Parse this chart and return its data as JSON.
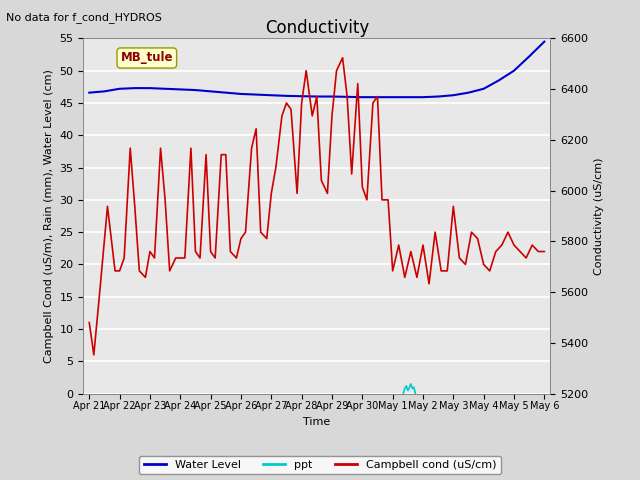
{
  "title": "Conductivity",
  "top_left_text": "No data for f_cond_HYDROS",
  "annotation_box": "MB_tule",
  "xlabel": "Time",
  "ylabel_left": "Campbell Cond (uS/m), Rain (mm), Water Level (cm)",
  "ylabel_right": "Conductivity (uS/cm)",
  "ylim_left": [
    0,
    55
  ],
  "ylim_right": [
    5200,
    6600
  ],
  "fig_bg_color": "#d8d8d8",
  "plot_bg_color": "#e8e8e8",
  "x_tick_labels": [
    "Apr 21",
    "Apr 22",
    "Apr 23",
    "Apr 24",
    "Apr 25",
    "Apr 26",
    "Apr 27",
    "Apr 28",
    "Apr 29",
    "Apr 30",
    "May 1",
    "May 2",
    "May 3",
    "May 4",
    "May 5",
    "May 6"
  ],
  "water_level": {
    "x": [
      0,
      0.5,
      1,
      1.5,
      2,
      2.5,
      3,
      3.5,
      4,
      4.5,
      5,
      5.5,
      6,
      6.5,
      7,
      7.5,
      8,
      8.5,
      9,
      9.5,
      10,
      10.5,
      11,
      11.5,
      12,
      12.5,
      13,
      13.5,
      14,
      14.5,
      15
    ],
    "y": [
      46.6,
      46.8,
      47.2,
      47.3,
      47.3,
      47.2,
      47.1,
      47.0,
      46.8,
      46.6,
      46.4,
      46.3,
      46.2,
      46.1,
      46.05,
      46.0,
      46.0,
      45.95,
      45.9,
      45.9,
      45.9,
      45.9,
      45.9,
      46.0,
      46.2,
      46.6,
      47.2,
      48.5,
      50.0,
      52.2,
      54.5
    ],
    "color": "#0000cc",
    "linewidth": 1.5
  },
  "campbell_cond": {
    "x": [
      0,
      0.15,
      0.35,
      0.6,
      0.85,
      1.0,
      1.15,
      1.35,
      1.5,
      1.65,
      1.85,
      2.0,
      2.15,
      2.35,
      2.5,
      2.65,
      2.85,
      3.0,
      3.15,
      3.35,
      3.5,
      3.65,
      3.85,
      4.0,
      4.15,
      4.35,
      4.5,
      4.65,
      4.85,
      5.0,
      5.15,
      5.35,
      5.5,
      5.65,
      5.85,
      6.0,
      6.15,
      6.35,
      6.5,
      6.65,
      6.85,
      7.0,
      7.15,
      7.35,
      7.5,
      7.65,
      7.85,
      8.0,
      8.15,
      8.35,
      8.5,
      8.65,
      8.85,
      9.0,
      9.15,
      9.35,
      9.5,
      9.65,
      9.85,
      10.0,
      10.2,
      10.4,
      10.6,
      10.8,
      11.0,
      11.2,
      11.4,
      11.6,
      11.8,
      12.0,
      12.2,
      12.4,
      12.6,
      12.8,
      13.0,
      13.2,
      13.4,
      13.6,
      13.8,
      14.0,
      14.2,
      14.4,
      14.6,
      14.8,
      15.0
    ],
    "y": [
      11,
      6,
      16,
      29,
      19,
      19,
      21,
      38,
      29,
      19,
      18,
      22,
      21,
      38,
      30,
      19,
      21,
      21,
      21,
      38,
      22,
      21,
      37,
      22,
      21,
      37,
      37,
      22,
      21,
      24,
      25,
      38,
      41,
      25,
      24,
      31,
      35,
      43,
      45,
      44,
      31,
      45,
      50,
      43,
      46,
      33,
      31,
      43,
      50,
      52,
      46,
      34,
      48,
      32,
      30,
      45,
      46,
      30,
      30,
      19,
      23,
      18,
      22,
      18,
      23,
      17,
      25,
      19,
      19,
      29,
      21,
      20,
      25,
      24,
      20,
      19,
      22,
      23,
      25,
      23,
      22,
      21,
      23,
      22,
      22
    ],
    "color": "#cc0000",
    "linewidth": 1.2
  },
  "ppt": {
    "x": [
      10.35,
      10.4,
      10.45,
      10.5,
      10.55,
      10.6,
      10.65,
      10.7,
      10.75
    ],
    "y": [
      0,
      0.8,
      1.2,
      0.5,
      0.9,
      1.5,
      0.8,
      1.0,
      0
    ],
    "color": "#00cccc",
    "linewidth": 1.2
  },
  "legend": [
    {
      "label": "Water Level",
      "color": "#0000cc"
    },
    {
      "label": "ppt",
      "color": "#00cccc"
    },
    {
      "label": "Campbell cond (uS/cm)",
      "color": "#cc0000"
    }
  ],
  "grid_color": "white",
  "title_fontsize": 12,
  "label_fontsize": 8,
  "tick_fontsize": 8
}
